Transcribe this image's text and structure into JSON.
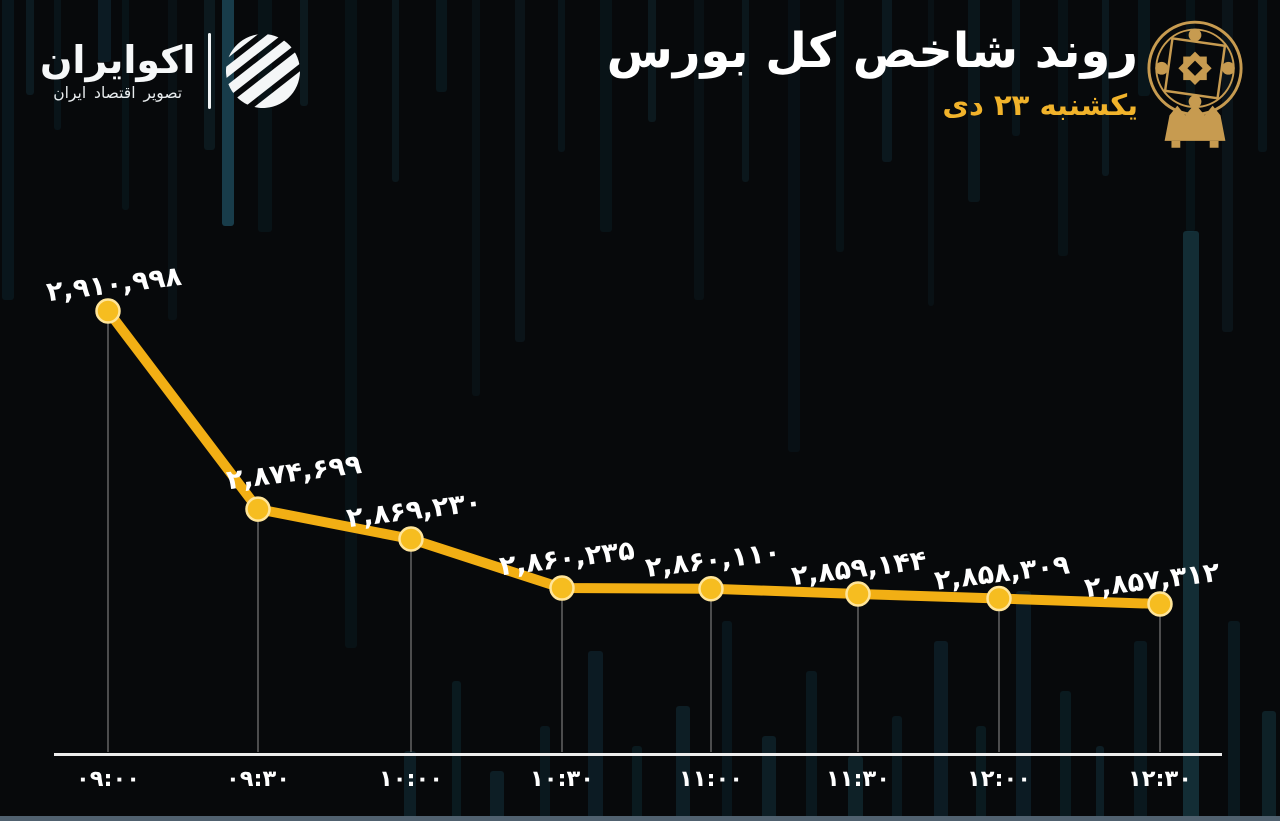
{
  "brand": {
    "name": "اکوایران",
    "tagline": "تصویر اقتصاد ایران"
  },
  "header": {
    "title": "روند شاخص کل بورس",
    "date": "یکشنبه ۲۳ دی"
  },
  "colors": {
    "background": "#07090B",
    "accent_gold": "#F1B32B",
    "line": "#F2AF14",
    "point_fill": "#F6BD20",
    "point_ring": "#FFE59A",
    "axis": "#EDEDED",
    "drop_line": "#7A7A7A",
    "text": "#FFFFFF",
    "bottom_strip": "#50616F",
    "emblem_gold": "#C79B50"
  },
  "chart_data": {
    "type": "line",
    "title": "روند شاخص کل بورس",
    "subtitle": "یکشنبه ۲۳ دی",
    "x_tick_labels": [
      "۰۹:۰۰",
      "۰۹:۳۰",
      "۱۰:۰۰",
      "۱۰:۳۰",
      "۱۱:۰۰",
      "۱۱:۳۰",
      "۱۲:۰۰",
      "۱۲:۳۰"
    ],
    "x_tick_labels_latin": [
      "09:00",
      "09:30",
      "10:00",
      "10:30",
      "11:00",
      "11:30",
      "12:00",
      "12:30"
    ],
    "values": [
      2910998,
      2874699,
      2869230,
      2860235,
      2860110,
      2859144,
      2858309,
      2857312
    ],
    "value_labels": [
      "۲,۹۱۰,۹۹۸",
      "۲,۸۷۴,۶۹۹",
      "۲,۸۶۹,۲۳۰",
      "۲,۸۶۰,۲۳۵",
      "۲,۸۶۰,۱۱۰",
      "۲,۸۵۹,۱۴۴",
      "۲,۸۵۸,۳۰۹",
      "۲,۸۵۷,۳۱۲"
    ],
    "ylim": [
      2857312,
      2910998
    ],
    "grid": false,
    "legend": false
  }
}
